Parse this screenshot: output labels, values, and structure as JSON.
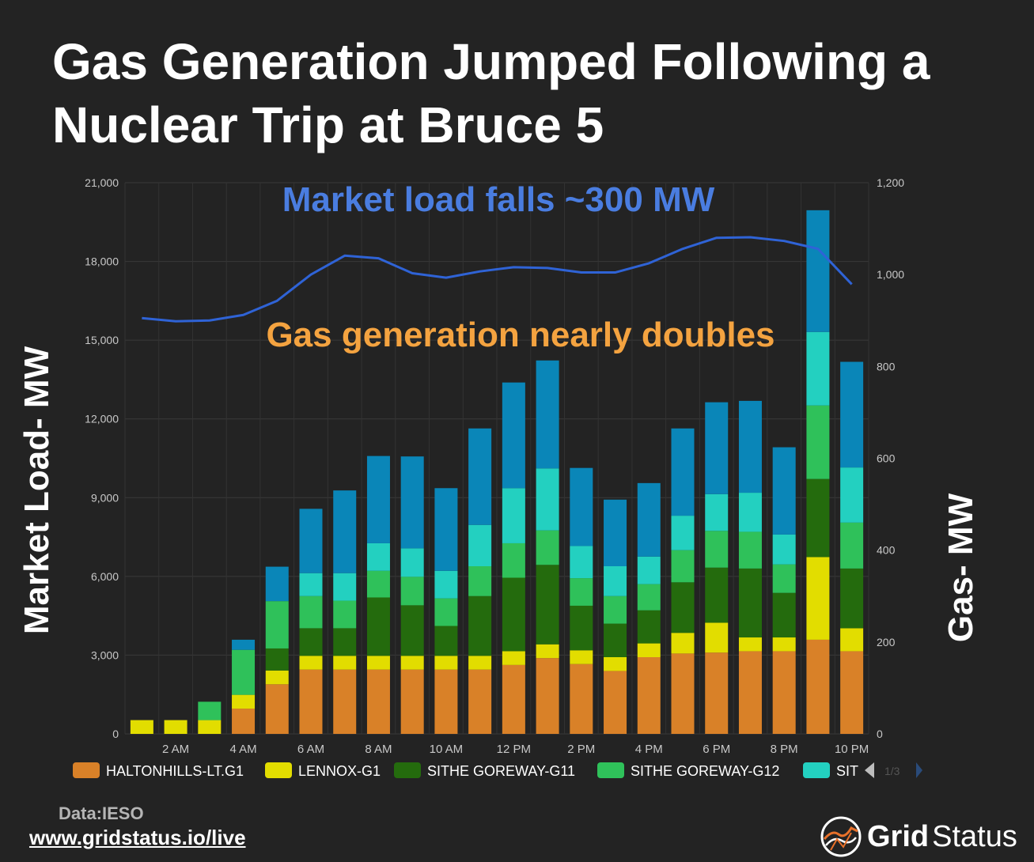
{
  "title": "Gas Generation Jumped Following a Nuclear Trip at Bruce 5",
  "left_axis_label": "Market Load- MW",
  "right_axis_label": "Gas- MW",
  "annotations": {
    "load": "Market load falls ~300 MW",
    "gas": "Gas generation nearly doubles"
  },
  "source": "Data:IESO",
  "link": "www.gridstatus.io/live",
  "logo": {
    "word1": "Grid",
    "word2": "Status"
  },
  "legend_page": "1/3",
  "colors": {
    "background": "#232323",
    "load_line": "#2f63d6",
    "load_annotation": "#4a7de0",
    "gas_annotation": "#f4a340",
    "axis_text": "#c8c8c8"
  },
  "chart_data": {
    "type": "bar",
    "stacked": true,
    "x": [
      "1 AM",
      "2 AM",
      "3 AM",
      "4 AM",
      "5 AM",
      "6 AM",
      "7 AM",
      "8 AM",
      "9 AM",
      "10 AM",
      "11 AM",
      "12 PM",
      "1 PM",
      "2 PM",
      "3 PM",
      "4 PM",
      "5 PM",
      "6 PM",
      "7 PM",
      "8 PM",
      "9 PM",
      "10 PM"
    ],
    "xticks": [
      "2 AM",
      "4 AM",
      "6 AM",
      "8 AM",
      "10 AM",
      "12 PM",
      "2 PM",
      "4 PM",
      "6 PM",
      "8 PM",
      "10 PM"
    ],
    "left_axis": {
      "ylim": [
        0,
        21000
      ],
      "ticks": [
        "0",
        "3,000",
        "6,000",
        "9,000",
        "12,000",
        "15,000",
        "18,000",
        "21,000"
      ]
    },
    "right_axis": {
      "ylim": [
        0,
        1200
      ],
      "ticks": [
        "0",
        "200",
        "400",
        "600",
        "800",
        "1,000",
        "1,200"
      ]
    },
    "grid": true,
    "legend_position": "bottom",
    "series": [
      {
        "name": "HALTONHILLS-LT.G1",
        "color": "#d98128",
        "axis": "right",
        "values": [
          0,
          0,
          0,
          55,
          108,
          140,
          140,
          140,
          140,
          140,
          140,
          150,
          165,
          152,
          137,
          167,
          175,
          177,
          180,
          180,
          205,
          180
        ]
      },
      {
        "name": "LENNOX-G1",
        "color": "#e2dd00",
        "axis": "right",
        "values": [
          30,
          30,
          30,
          30,
          30,
          30,
          30,
          30,
          30,
          30,
          30,
          30,
          30,
          30,
          30,
          30,
          45,
          65,
          30,
          30,
          180,
          50
        ]
      },
      {
        "name": "SITHE GOREWAY-G11",
        "color": "#246b0d",
        "axis": "right",
        "values": [
          0,
          0,
          0,
          0,
          48,
          60,
          60,
          127,
          110,
          65,
          130,
          160,
          173,
          97,
          73,
          72,
          110,
          120,
          150,
          97,
          170,
          130
        ]
      },
      {
        "name": "SITHE GOREWAY-G12",
        "color": "#2fc15a",
        "axis": "right",
        "values": [
          0,
          0,
          40,
          98,
          103,
          70,
          60,
          58,
          62,
          60,
          65,
          75,
          75,
          60,
          60,
          57,
          70,
          80,
          80,
          62,
          160,
          100
        ]
      },
      {
        "name": "SIT",
        "color": "#23d0c0",
        "axis": "right",
        "values": [
          0,
          0,
          0,
          0,
          0,
          50,
          60,
          60,
          62,
          60,
          90,
          120,
          135,
          70,
          65,
          60,
          75,
          80,
          85,
          65,
          160,
          120
        ]
      },
      {
        "name": "",
        "color": "#0a86b8",
        "axis": "right",
        "values": [
          0,
          0,
          0,
          22,
          75,
          140,
          180,
          190,
          200,
          180,
          210,
          230,
          235,
          170,
          145,
          160,
          190,
          200,
          200,
          190,
          265,
          230
        ]
      }
    ],
    "line_series": [
      {
        "name": "Market Load",
        "color": "#2f63d6",
        "axis": "left",
        "x": [
          "1 AM",
          "2 AM",
          "3 AM",
          "4 AM",
          "5 AM",
          "6 AM",
          "7 AM",
          "8 AM",
          "9 AM",
          "10 AM",
          "11 AM",
          "12 PM",
          "1 PM",
          "2 PM",
          "3 PM",
          "4 PM",
          "5 PM",
          "6 PM",
          "7 PM",
          "8 PM",
          "9 PM",
          "10 PM"
        ],
        "values": [
          15840,
          15720,
          15750,
          15960,
          16500,
          17500,
          18220,
          18120,
          17550,
          17380,
          17620,
          17780,
          17750,
          17580,
          17580,
          17930,
          18480,
          18900,
          18920,
          18780,
          18480,
          17130
        ]
      }
    ]
  }
}
